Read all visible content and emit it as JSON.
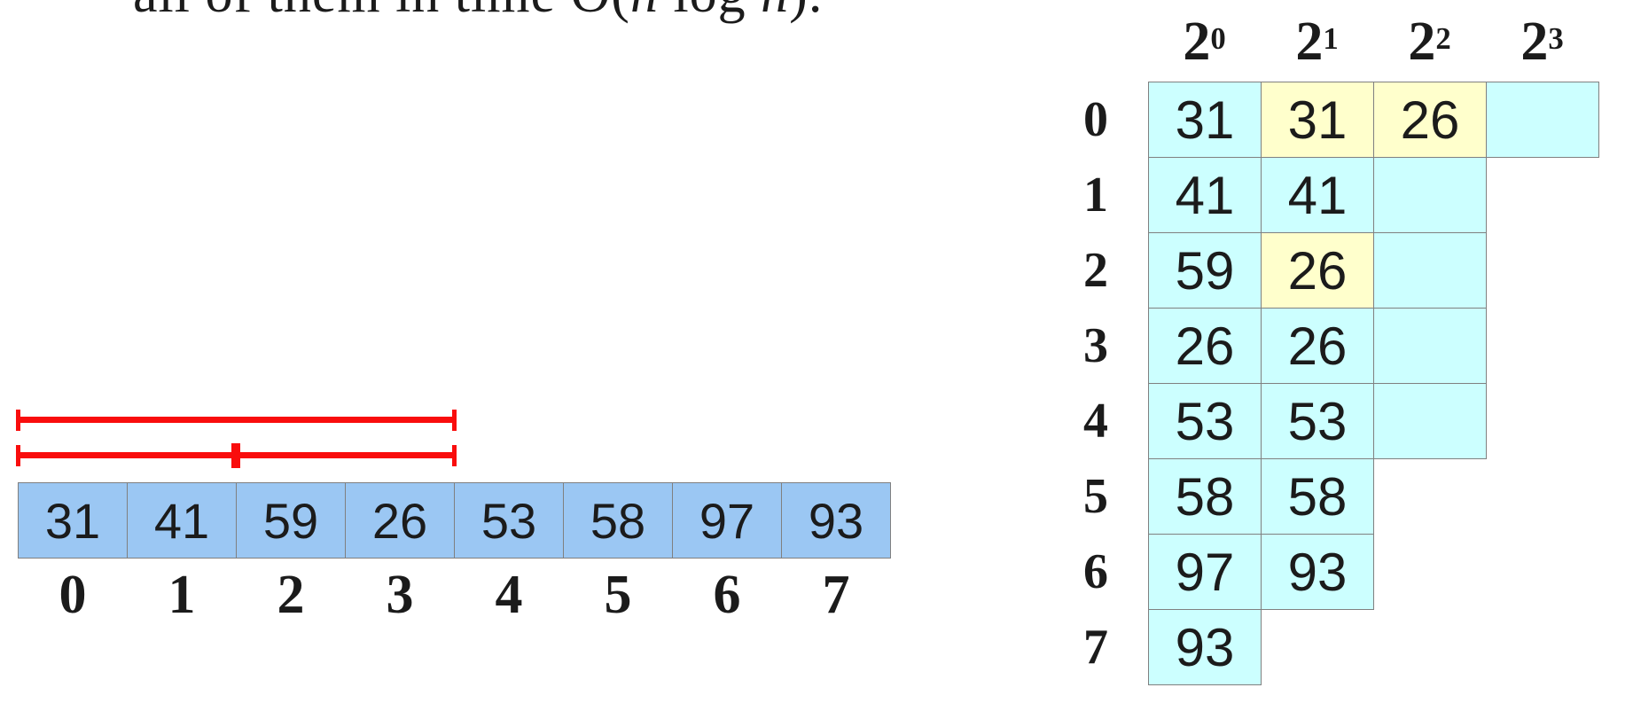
{
  "caption": {
    "full_text": "all of them in time O(n log n).",
    "segments": [
      {
        "text": "all of them in time O(",
        "italic": false
      },
      {
        "text": "n",
        "italic": true
      },
      {
        "text": " log ",
        "italic": false
      },
      {
        "text": "n",
        "italic": true
      },
      {
        "text": ").",
        "italic": false
      }
    ]
  },
  "colors": {
    "array_cell": "#9BC7F3",
    "table_cell": "#CCFFFF",
    "table_highlight": "#FFFFCC",
    "bracket": "#F90D0D",
    "grid_border": "#808080",
    "text": "#1B1B1B"
  },
  "array": {
    "values": [
      "31",
      "41",
      "59",
      "26",
      "53",
      "58",
      "97",
      "93"
    ],
    "indices": [
      "0",
      "1",
      "2",
      "3",
      "4",
      "5",
      "6",
      "7"
    ]
  },
  "brackets": [
    {
      "name": "query-range-0-3",
      "ranges": [
        [
          0,
          4
        ]
      ]
    },
    {
      "name": "split-ranges-0-1-and-2-3",
      "ranges": [
        [
          0,
          2
        ],
        [
          2,
          4
        ]
      ]
    }
  ],
  "sparse_table": {
    "column_headers": [
      {
        "base": "2",
        "exp": "0"
      },
      {
        "base": "2",
        "exp": "1"
      },
      {
        "base": "2",
        "exp": "2"
      },
      {
        "base": "2",
        "exp": "3"
      }
    ],
    "rows": [
      {
        "label": "0",
        "cells": [
          {
            "value": "31",
            "highlight": false
          },
          {
            "value": "31",
            "highlight": true
          },
          {
            "value": "26",
            "highlight": true
          },
          {
            "value": "",
            "highlight": false
          }
        ]
      },
      {
        "label": "1",
        "cells": [
          {
            "value": "41",
            "highlight": false
          },
          {
            "value": "41",
            "highlight": false
          },
          {
            "value": "",
            "highlight": false
          }
        ]
      },
      {
        "label": "2",
        "cells": [
          {
            "value": "59",
            "highlight": false
          },
          {
            "value": "26",
            "highlight": true
          },
          {
            "value": "",
            "highlight": false
          }
        ]
      },
      {
        "label": "3",
        "cells": [
          {
            "value": "26",
            "highlight": false
          },
          {
            "value": "26",
            "highlight": false
          },
          {
            "value": "",
            "highlight": false
          }
        ]
      },
      {
        "label": "4",
        "cells": [
          {
            "value": "53",
            "highlight": false
          },
          {
            "value": "53",
            "highlight": false
          },
          {
            "value": "",
            "highlight": false
          }
        ]
      },
      {
        "label": "5",
        "cells": [
          {
            "value": "58",
            "highlight": false
          },
          {
            "value": "58",
            "highlight": false
          }
        ]
      },
      {
        "label": "6",
        "cells": [
          {
            "value": "97",
            "highlight": false
          },
          {
            "value": "93",
            "highlight": false
          }
        ]
      },
      {
        "label": "7",
        "cells": [
          {
            "value": "93",
            "highlight": false
          }
        ]
      }
    ]
  }
}
